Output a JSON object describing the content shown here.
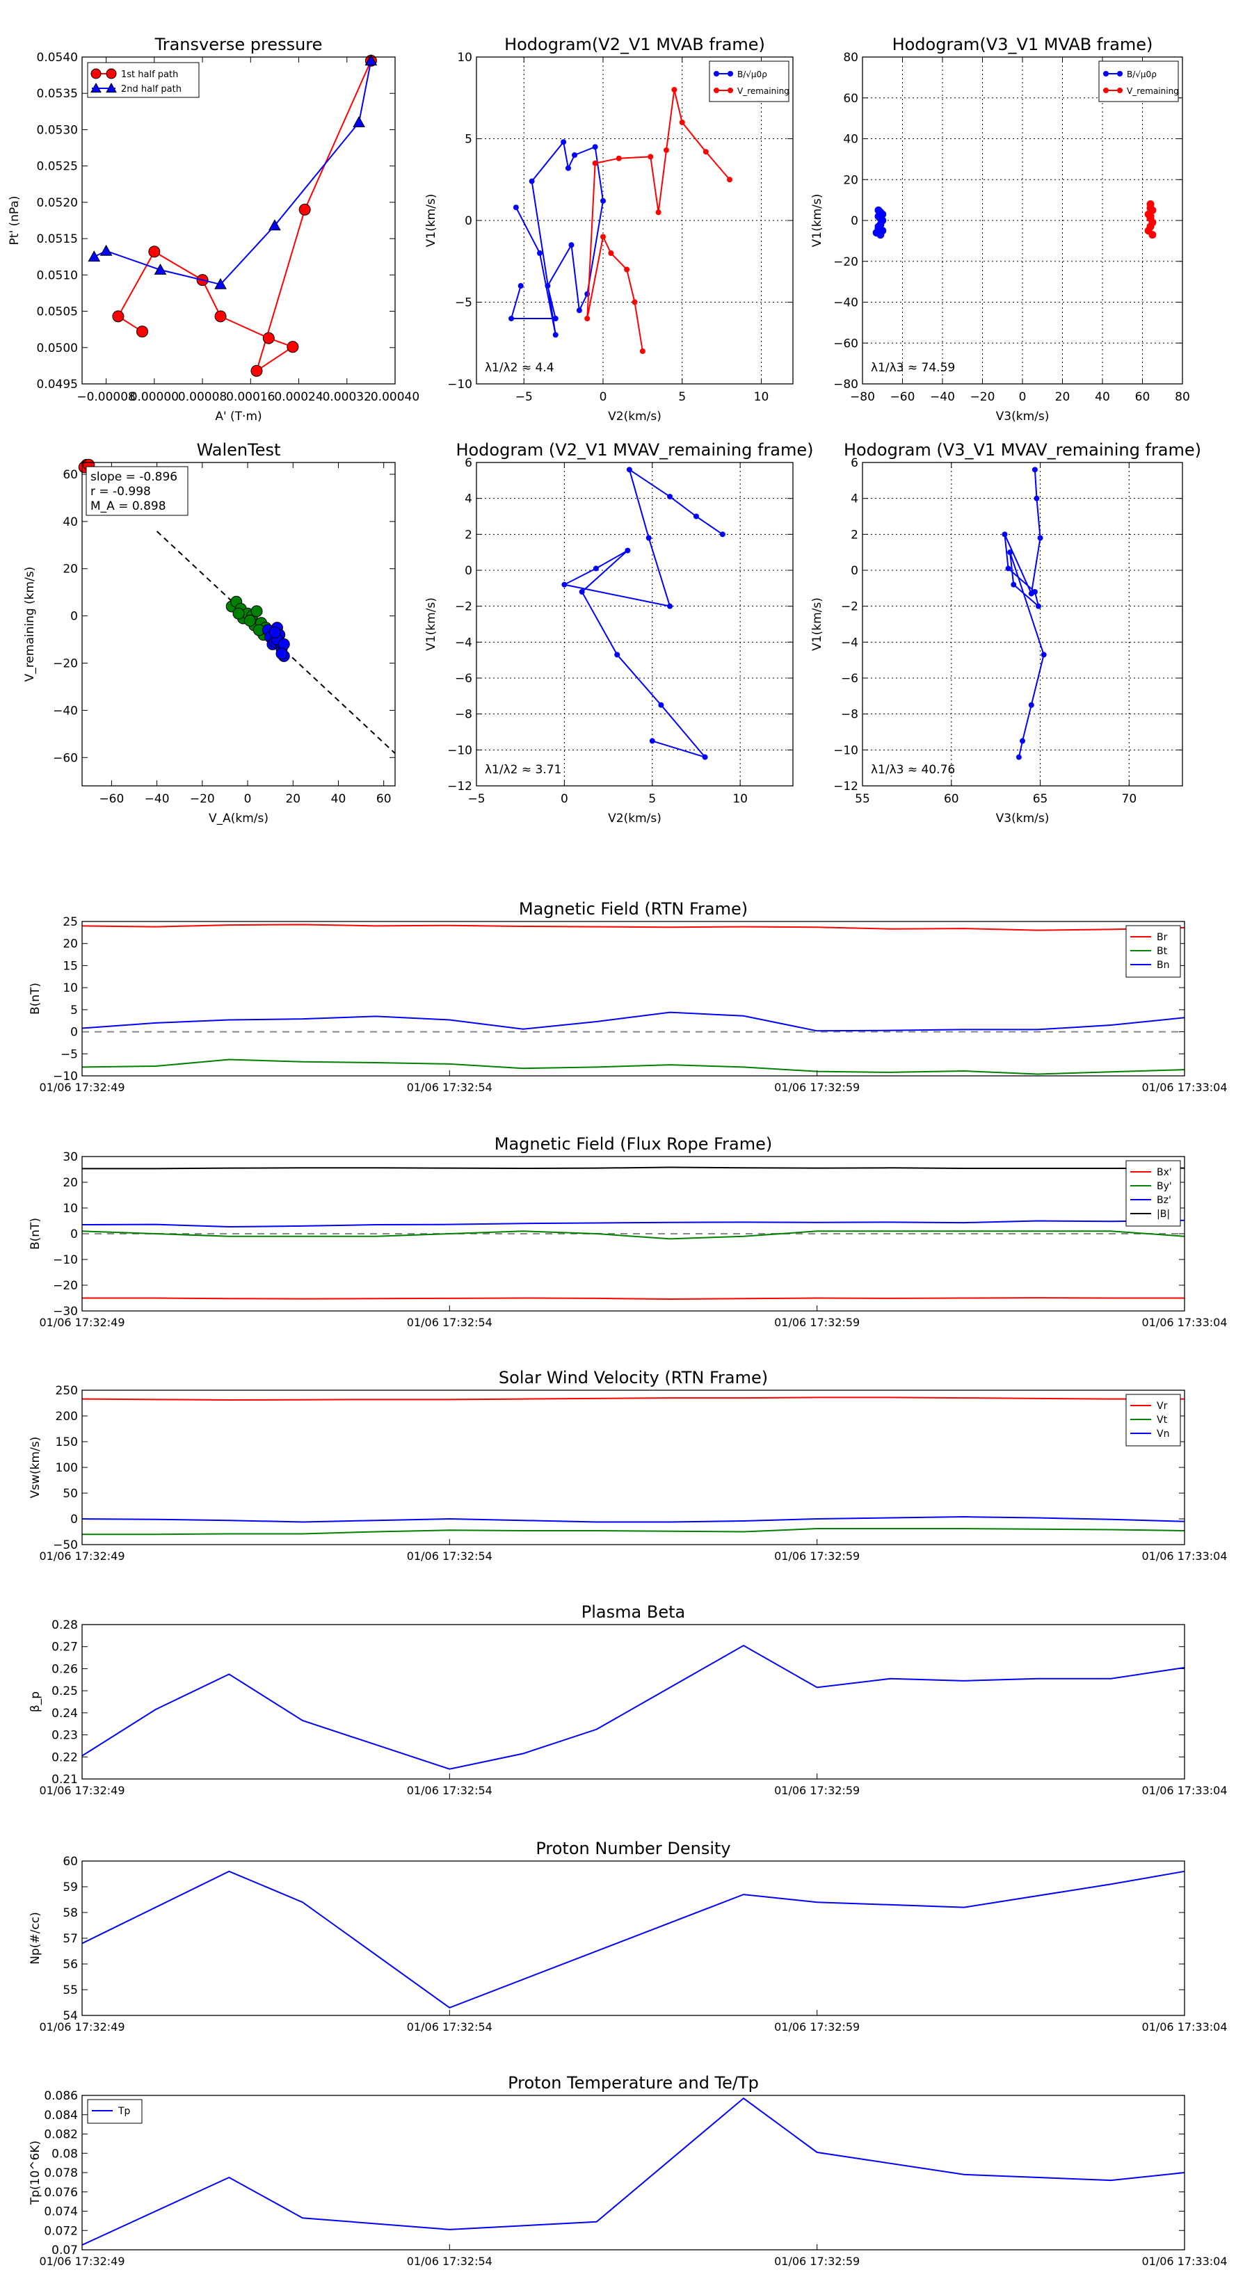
{
  "chart_data": [
    {
      "id": "tp",
      "type": "scatter",
      "title": "Transverse pressure",
      "xlabel": "A' (T·m)",
      "ylabel": "Pt' (nPa)",
      "xlim": [
        -0.00012,
        0.0004
      ],
      "ylim": [
        0.0495,
        0.054
      ],
      "xticks": [
        -8e-05,
        0.0,
        8e-05,
        0.00016,
        0.00024,
        0.00032,
        0.0004
      ],
      "xticklabels": [
        "−0.00008",
        "0.00000",
        "0.00008",
        "0.00016",
        "0.00024",
        "0.00032",
        "0.00040"
      ],
      "yticks": [
        0.0495,
        0.05,
        0.0505,
        0.051,
        0.0515,
        0.052,
        0.0525,
        0.053,
        0.0535,
        0.054
      ],
      "yticklabels": [
        "0.0495",
        "0.0500",
        "0.0505",
        "0.0510",
        "0.0515",
        "0.0520",
        "0.0525",
        "0.0530",
        "0.0535",
        "0.0540"
      ],
      "grid": false,
      "legend_loc": "top-left",
      "series": [
        {
          "name": "1st half path",
          "color": "#ff0000",
          "marker": "circle",
          "x": [
            0.00036,
            0.00025,
            0.00017,
            0.00023,
            0.00019,
            0.00011,
            8e-05,
            0.0,
            -6e-05,
            -2e-05
          ],
          "y": [
            0.05395,
            0.0519,
            0.04968,
            0.05001,
            0.05013,
            0.05043,
            0.05093,
            0.05132,
            0.05043,
            0.05022
          ]
        },
        {
          "name": "2nd half path",
          "color": "#0000ff",
          "marker": "triangle",
          "x": [
            0.00036,
            0.00034,
            0.0002,
            0.00011,
            1e-05,
            -8e-05,
            -0.0001
          ],
          "y": [
            0.05395,
            0.0531,
            0.05168,
            0.05087,
            0.05107,
            0.05133,
            0.05125
          ]
        }
      ]
    },
    {
      "id": "h1",
      "type": "line",
      "title": "Hodogram(V2_V1 MVAB frame)",
      "xlabel": "V2(km/s)",
      "ylabel": "V1(km/s)",
      "xlim": [
        -8,
        12
      ],
      "ylim": [
        -10,
        10
      ],
      "xticks": [
        -5,
        0,
        5,
        10
      ],
      "yticks": [
        -10,
        -5,
        0,
        5,
        10
      ],
      "grid": true,
      "legend_loc": "top-right",
      "annotation": "λ1/λ2 ≈ 4.4",
      "series": [
        {
          "name": "B/√μ0ρ",
          "color": "#0000ff",
          "marker": "circle",
          "x": [
            -5.5,
            -4,
            -3,
            -4.5,
            -2.5,
            -2.2,
            -1.8,
            -0.5,
            0,
            -1,
            -1.5,
            -2,
            -3.5,
            -3,
            -5.8,
            -5.2
          ],
          "y": [
            0.8,
            -2,
            -7,
            2.4,
            4.8,
            3.2,
            4.0,
            4.5,
            1.2,
            -4.5,
            -5.5,
            -1.5,
            -4,
            -6,
            -6,
            -4
          ]
        },
        {
          "name": "V_remaining",
          "color": "#ff0000",
          "marker": "circle",
          "x": [
            8,
            6.5,
            5,
            4.5,
            4,
            3.5,
            3,
            1,
            -0.5,
            -1,
            0,
            0.5,
            1.5,
            2,
            2.5
          ],
          "y": [
            2.5,
            4.2,
            6,
            8,
            4.3,
            0.5,
            3.9,
            3.8,
            3.5,
            -6,
            -1,
            -2,
            -3,
            -5,
            -8
          ]
        }
      ]
    },
    {
      "id": "h2",
      "type": "scatter",
      "title": "Hodogram(V3_V1 MVAB frame)",
      "xlabel": "V3(km/s)",
      "ylabel": "V1(km/s)",
      "xlim": [
        -80,
        80
      ],
      "ylim": [
        -80,
        80
      ],
      "xticks": [
        -80,
        -60,
        -40,
        -20,
        0,
        20,
        40,
        60,
        80
      ],
      "yticks": [
        -80,
        -60,
        -40,
        -20,
        0,
        20,
        40,
        60,
        80
      ],
      "grid": true,
      "legend_loc": "top-right",
      "annotation": "λ1/λ3 ≈ 74.59",
      "series": [
        {
          "name": "B/√μ0ρ",
          "color": "#0000ff",
          "marker": "circle",
          "x": [
            -71,
            -72,
            -70,
            -71,
            -72,
            -73,
            -71,
            -70,
            -72,
            -71,
            -70,
            -72
          ],
          "y": [
            4,
            2,
            0,
            -2,
            -4,
            -6,
            -7,
            3,
            -3,
            1,
            -5,
            5
          ]
        },
        {
          "name": "V_remaining",
          "color": "#ff0000",
          "marker": "circle",
          "x": [
            64,
            65,
            63,
            64,
            65,
            64,
            63,
            65,
            64,
            64
          ],
          "y": [
            8,
            5,
            3,
            1,
            -1,
            -3,
            -5,
            -7,
            2,
            6
          ]
        }
      ]
    },
    {
      "id": "walen",
      "type": "scatter",
      "title": "WalenTest",
      "xlabel": "V_A(km/s)",
      "ylabel": "V_remaining (km/s)",
      "xlim": [
        -73,
        65
      ],
      "ylim": [
        -72,
        65
      ],
      "xticks": [
        -60,
        -40,
        -20,
        0,
        20,
        40,
        60
      ],
      "yticks": [
        -60,
        -40,
        -20,
        0,
        20,
        40,
        60
      ],
      "grid": false,
      "annotations": [
        "slope = -0.896",
        "r = -0.998",
        "M_A = 0.898"
      ],
      "fit_line": {
        "slope": -0.896,
        "intercept": 0
      },
      "series": [
        {
          "name": "green",
          "color": "#008000",
          "marker": "circle",
          "x": [
            -7,
            -5,
            -3,
            -2,
            0,
            2,
            4,
            3,
            6,
            7,
            8,
            -4,
            1,
            5
          ],
          "y": [
            4,
            6,
            3,
            -1,
            1,
            0,
            2,
            -4,
            -3,
            -8,
            -5,
            1,
            -2,
            -6
          ]
        },
        {
          "name": "blue",
          "color": "#0000ff",
          "marker": "circle",
          "x": [
            9,
            10,
            11,
            12,
            13,
            14,
            15,
            16,
            14,
            13,
            12,
            16,
            15
          ],
          "y": [
            -6,
            -9,
            -12,
            -11,
            -5,
            -8,
            -14,
            -17,
            -11,
            -10,
            -7,
            -12,
            -16
          ]
        },
        {
          "name": "red",
          "color": "#ff0000",
          "marker": "circle",
          "x": [
            -71,
            -72,
            -70
          ],
          "y": [
            64,
            63,
            64
          ]
        }
      ]
    },
    {
      "id": "h3",
      "type": "line",
      "title": "Hodogram (V2_V1 MVAV_remaining frame)",
      "xlabel": "V2(km/s)",
      "ylabel": "V1(km/s)",
      "xlim": [
        -5,
        13
      ],
      "ylim": [
        -12,
        6
      ],
      "xticks": [
        -5,
        0,
        5,
        10
      ],
      "yticks": [
        -12,
        -10,
        -8,
        -6,
        -4,
        -2,
        0,
        2,
        4,
        6
      ],
      "grid": true,
      "annotation": "λ1/λ2 ≈ 3.71",
      "series": [
        {
          "name": "V",
          "color": "#0000ff",
          "marker": "circle",
          "x": [
            9,
            7.5,
            6,
            3.7,
            4.8,
            6,
            0,
            1.8,
            3.6,
            1,
            3,
            5.5,
            8,
            5
          ],
          "y": [
            2,
            3,
            4.1,
            5.6,
            1.8,
            -2,
            -0.8,
            0.1,
            1.1,
            -1.2,
            -4.7,
            -7.5,
            -10.4,
            -9.5
          ]
        }
      ]
    },
    {
      "id": "h4",
      "type": "line",
      "title": "Hodogram (V3_V1 MVAV_remaining frame)",
      "xlabel": "V3(km/s)",
      "ylabel": "V1(km/s)",
      "xlim": [
        55,
        73
      ],
      "ylim": [
        -12,
        6
      ],
      "xticks": [
        55,
        60,
        65,
        70
      ],
      "yticks": [
        -12,
        -10,
        -8,
        -6,
        -4,
        -2,
        0,
        2,
        4,
        6
      ],
      "grid": true,
      "annotation": "λ1/λ3 ≈ 40.76",
      "series": [
        {
          "name": "V",
          "color": "#0000ff",
          "marker": "circle",
          "x": [
            64.7,
            64.8,
            65,
            64.5,
            63,
            63.2,
            64.7,
            64.9,
            63.5,
            63.3,
            65.2,
            64.5,
            64,
            63.8
          ],
          "y": [
            5.6,
            4.0,
            1.8,
            -1.3,
            2,
            0.1,
            -1.2,
            -2,
            -0.8,
            1.0,
            -4.7,
            -7.5,
            -9.5,
            -10.4
          ]
        }
      ]
    },
    {
      "id": "bfield",
      "type": "line",
      "title": "Magnetic Field (RTN Frame)",
      "xlabel": "",
      "ylabel": "B(nT)",
      "ylim": [
        -10,
        25
      ],
      "yticks": [
        -10,
        -5,
        0,
        5,
        10,
        15,
        20,
        25
      ],
      "zero_line": true,
      "legend_loc": "top-right",
      "xticklabels": [
        "01/06 17:32:49",
        "01/06 17:32:54",
        "01/06 17:32:59",
        "01/06 17:33:04"
      ],
      "series": [
        {
          "name": "Br",
          "color": "#ff0000",
          "values": [
            24,
            23.8,
            24.2,
            24.3,
            24,
            24.1,
            23.9,
            23.8,
            23.7,
            23.8,
            23.7,
            23.3,
            23.4,
            23,
            23.2,
            23.6
          ]
        },
        {
          "name": "Bt",
          "color": "#008000",
          "values": [
            -8,
            -7.8,
            -6.3,
            -6.8,
            -7,
            -7.3,
            -8.3,
            -8,
            -7.5,
            -8,
            -9,
            -9.2,
            -8.9,
            -9.6,
            -9.1,
            -8.6
          ]
        },
        {
          "name": "Bn",
          "color": "#0000ff",
          "values": [
            0.8,
            2,
            2.7,
            2.9,
            3.5,
            2.7,
            0.6,
            2.3,
            4.4,
            3.6,
            0.2,
            0.3,
            0.5,
            0.5,
            1.5,
            3.2
          ]
        }
      ]
    },
    {
      "id": "bflux",
      "type": "line",
      "title": "Magnetic Field (Flux Rope Frame)",
      "xlabel": "",
      "ylabel": "B(nT)",
      "ylim": [
        -30,
        30
      ],
      "yticks": [
        -30,
        -20,
        -10,
        0,
        10,
        20,
        30
      ],
      "zero_line": true,
      "legend_loc": "top-right",
      "xticklabels": [
        "01/06 17:32:49",
        "01/06 17:32:54",
        "01/06 17:32:59",
        "01/06 17:33:04"
      ],
      "series": [
        {
          "name": "Bx'",
          "color": "#ff0000",
          "values": [
            -25,
            -25,
            -25.2,
            -25.3,
            -25.2,
            -25.1,
            -25,
            -25.1,
            -25.4,
            -25.2,
            -25,
            -25.1,
            -25,
            -24.9,
            -25,
            -25
          ]
        },
        {
          "name": "By'",
          "color": "#008000",
          "values": [
            1,
            0,
            -1,
            -1,
            -1,
            0,
            1,
            0,
            -2,
            -1,
            1,
            1,
            1,
            1,
            1,
            -1
          ]
        },
        {
          "name": "Bz'",
          "color": "#0000ff",
          "values": [
            3.5,
            3.6,
            2.7,
            3,
            3.5,
            3.6,
            4,
            4.2,
            4.4,
            4.5,
            4.4,
            4.5,
            4.3,
            5,
            4.8,
            5.2
          ]
        },
        {
          "name": "|B|",
          "color": "#000000",
          "values": [
            25.3,
            25.3,
            25.5,
            25.6,
            25.6,
            25.5,
            25.4,
            25.5,
            25.8,
            25.6,
            25.5,
            25.6,
            25.4,
            25.4,
            25.4,
            25.5
          ]
        }
      ]
    },
    {
      "id": "vel",
      "type": "line",
      "title": "Solar Wind Velocity (RTN Frame)",
      "xlabel": "",
      "ylabel": "Vsw(km/s)",
      "ylim": [
        -50,
        250
      ],
      "yticks": [
        -50,
        0,
        50,
        100,
        150,
        200,
        250
      ],
      "legend_loc": "top-right",
      "xticklabels": [
        "01/06 17:32:49",
        "01/06 17:32:54",
        "01/06 17:32:59",
        "01/06 17:33:04"
      ],
      "series": [
        {
          "name": "Vr",
          "color": "#ff0000",
          "values": [
            233,
            232,
            231,
            231.5,
            232,
            232,
            233,
            234,
            235,
            235,
            236,
            236,
            235,
            234,
            233,
            233
          ]
        },
        {
          "name": "Vt",
          "color": "#008000",
          "values": [
            -30,
            -30,
            -29,
            -29,
            -25,
            -22,
            -23,
            -23,
            -24,
            -25,
            -19,
            -19,
            -19,
            -20,
            -21,
            -23
          ]
        },
        {
          "name": "Vn",
          "color": "#0000ff",
          "values": [
            0,
            -1,
            -3,
            -6,
            -3,
            0,
            -3,
            -6,
            -6,
            -4,
            0,
            2,
            4,
            2,
            -1,
            -5
          ]
        }
      ]
    },
    {
      "id": "beta",
      "type": "line",
      "title": "Plasma Beta",
      "xlabel": "",
      "ylabel": "β_p",
      "ylim": [
        0.21,
        0.28
      ],
      "yticks": [
        0.21,
        0.22,
        0.23,
        0.24,
        0.25,
        0.26,
        0.27,
        0.28
      ],
      "xticklabels": [
        "01/06 17:32:49",
        "01/06 17:32:54",
        "01/06 17:32:59",
        "01/06 17:33:04"
      ],
      "series": [
        {
          "name": "beta",
          "color": "#0000ff",
          "values": [
            0.2205,
            0.2415,
            0.2575,
            0.2365,
            0.2255,
            0.2145,
            0.2215,
            0.2325,
            0.2515,
            0.2705,
            0.2515,
            0.2555,
            0.2545,
            0.2555,
            0.2555,
            0.2605
          ]
        }
      ]
    },
    {
      "id": "np",
      "type": "line",
      "title": "Proton Number Density",
      "xlabel": "",
      "ylabel": "Np(#/cc)",
      "ylim": [
        54,
        60
      ],
      "yticks": [
        54,
        55,
        56,
        57,
        58,
        59,
        60
      ],
      "xticklabels": [
        "01/06 17:32:49",
        "01/06 17:32:54",
        "01/06 17:32:59",
        "01/06 17:33:04"
      ],
      "series": [
        {
          "name": "Np",
          "color": "#0000ff",
          "values": [
            56.8,
            59.6,
            58.4,
            54.3,
            57.6,
            58.7,
            58.4,
            58.2,
            59.1,
            59.6
          ],
          "x": [
            0,
            4,
            6,
            10,
            16,
            18,
            20,
            24,
            28,
            30
          ]
        }
      ]
    },
    {
      "id": "tp_temp",
      "type": "line",
      "title": "Proton Temperature and Te/Tp",
      "xlabel": "",
      "ylabel": "Tp(10^6K)",
      "ylim": [
        0.07,
        0.086
      ],
      "yticks": [
        0.07,
        0.072,
        0.074,
        0.076,
        0.078,
        0.08,
        0.082,
        0.084,
        0.086
      ],
      "legend_loc": "top-left",
      "xticklabels": [
        "01/06 17:32:49",
        "01/06 17:32:54",
        "01/06 17:32:59",
        "01/06 17:33:04"
      ],
      "series": [
        {
          "name": "Tp",
          "color": "#0000ff",
          "values": [
            0.0705,
            0.0775,
            0.0733,
            0.0721,
            0.0729,
            0.0857,
            0.0801,
            0.0778,
            0.0772,
            0.078
          ],
          "x": [
            0,
            4,
            6,
            10,
            14,
            18,
            20,
            24,
            28,
            30
          ]
        }
      ]
    }
  ]
}
